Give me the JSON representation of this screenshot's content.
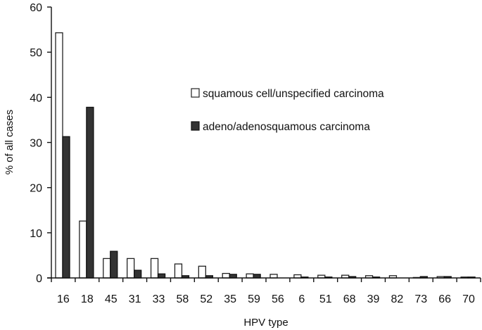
{
  "chart_data": {
    "type": "bar",
    "title": "",
    "xlabel": "HPV type",
    "ylabel": "% of all cases",
    "ylim": [
      0,
      60
    ],
    "yticks": [
      0,
      10,
      20,
      30,
      40,
      50,
      60
    ],
    "grid": false,
    "legend_position": "upper right (inside plot)",
    "categories": [
      "16",
      "18",
      "45",
      "31",
      "33",
      "58",
      "52",
      "35",
      "59",
      "56",
      "6",
      "51",
      "68",
      "39",
      "82",
      "73",
      "66",
      "70"
    ],
    "series": [
      {
        "name": "squamous cell/unspecified carcinoma",
        "fill": "#ffffff",
        "stroke": "#222222",
        "values": [
          54.3,
          12.6,
          4.3,
          4.3,
          4.3,
          3.1,
          2.6,
          1.0,
          0.9,
          0.8,
          0.7,
          0.6,
          0.6,
          0.5,
          0.5,
          0.1,
          0.3,
          0.2
        ]
      },
      {
        "name": "adeno/adenosquamous carcinoma",
        "fill": "#333333",
        "stroke": "#111111",
        "values": [
          31.3,
          37.8,
          5.9,
          1.7,
          0.9,
          0.5,
          0.5,
          0.8,
          0.8,
          0.0,
          0.2,
          0.2,
          0.3,
          0.2,
          0.0,
          0.3,
          0.3,
          0.2
        ]
      }
    ]
  },
  "legend": {
    "items": [
      {
        "label": "squamous cell/unspecified carcinoma",
        "swatch": "#ffffff"
      },
      {
        "label": "adeno/adenosquamous carcinoma",
        "swatch": "#333333"
      }
    ]
  },
  "axes": {
    "x_title": "HPV type",
    "y_title": "% of all cases"
  }
}
